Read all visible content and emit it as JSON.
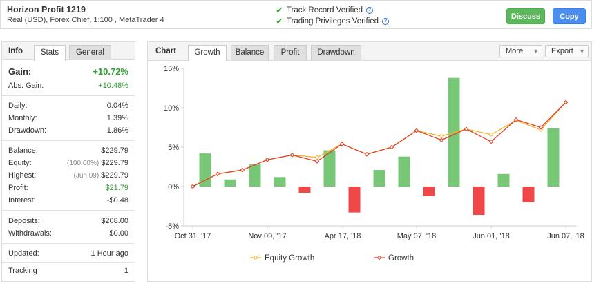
{
  "header": {
    "title": "Horizon Profit 1219",
    "sub_prefix": "Real (USD),",
    "broker": "Forex Chief",
    "sub_suffix": ", 1:100 , MetaTrader 4",
    "verified_1": "Track Record Verified",
    "verified_2": "Trading Privileges Verified",
    "discuss": "Discuss",
    "copy": "Copy"
  },
  "left": {
    "tab_info": "Info",
    "tab_stats": "Stats",
    "tab_general": "General",
    "gain_label": "Gain:",
    "gain_value": "+10.72%",
    "abs_gain_label": "Abs. Gain:",
    "abs_gain_value": "+10.48%",
    "daily_label": "Daily:",
    "daily_value": "0.04%",
    "monthly_label": "Monthly:",
    "monthly_value": "1.39%",
    "drawdown_label": "Drawdown:",
    "drawdown_value": "1.86%",
    "balance_label": "Balance:",
    "balance_value": "$229.79",
    "equity_label": "Equity:",
    "equity_note": "(100.00%)",
    "equity_value": "$229.79",
    "highest_label": "Highest:",
    "highest_note": "(Jun 09)",
    "highest_value": "$229.79",
    "profit_label": "Profit:",
    "profit_value": "$21.79",
    "interest_label": "Interest:",
    "interest_value": "-$0.48",
    "deposits_label": "Deposits:",
    "deposits_value": "$208.00",
    "withdrawals_label": "Withdrawals:",
    "withdrawals_value": "$0.00",
    "updated_label": "Updated:",
    "updated_value": "1 Hour ago",
    "tracking_label": "Tracking",
    "tracking_value": "1"
  },
  "right": {
    "tab_chart": "Chart",
    "tab_growth": "Growth",
    "tab_balance": "Balance",
    "tab_profit": "Profit",
    "tab_drawdown": "Drawdown",
    "more": "More",
    "export": "Export"
  },
  "colors": {
    "bar_positive": "#77c777",
    "bar_negative": "#f04848",
    "growth_line": "#e0402a",
    "equity_line": "#f5b32a"
  },
  "chart_data": {
    "type": "line",
    "ylim": [
      -5,
      15
    ],
    "y_ticks": [
      "15%",
      "10%",
      "5%",
      "0%",
      "-5%"
    ],
    "x_tick_labels": [
      "Oct 31, '17",
      "Nov 09, '17",
      "Apr 17, '18",
      "May 07, '18",
      "Jun 01, '18",
      "Jun 07, '18"
    ],
    "bars": [
      4.2,
      0.9,
      2.8,
      1.2,
      -0.8,
      4.6,
      -3.3,
      2.1,
      3.8,
      -1.2,
      13.8,
      -3.6,
      1.6,
      -2.0,
      7.4
    ],
    "series": [
      {
        "name": "Equity Growth",
        "values": [
          0,
          1.6,
          2.1,
          3.4,
          4.0,
          3.7,
          5.4,
          4.1,
          5.0,
          7.1,
          6.4,
          7.3,
          6.6,
          8.4,
          7.2,
          10.7
        ]
      },
      {
        "name": "Growth",
        "values": [
          0,
          1.6,
          2.1,
          3.4,
          4.0,
          3.2,
          5.4,
          4.1,
          5.0,
          7.1,
          5.9,
          7.3,
          5.7,
          8.5,
          7.5,
          10.7
        ]
      }
    ],
    "legend": "bottom"
  }
}
